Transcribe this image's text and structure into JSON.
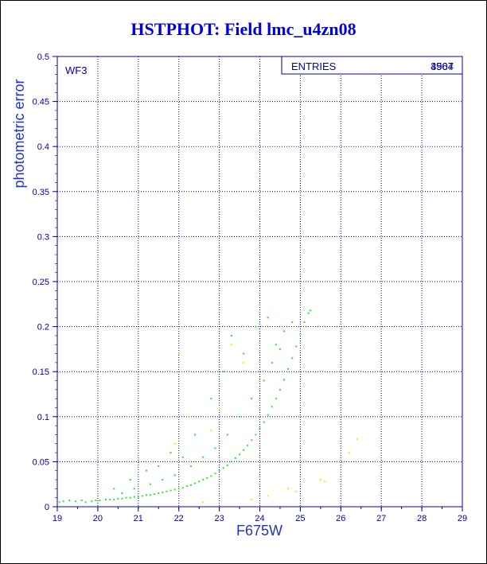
{
  "title": "HSTPHOT: Field lmc_u4zn08",
  "colors": {
    "frame": "#0000aa",
    "grid": "#0000aa",
    "title": "#0000dd",
    "primary_points": "#22ee22",
    "secondary_points": "#eeee00"
  },
  "chart_data": {
    "type": "scatter",
    "title": "HSTPHOT: Field lmc_u4zn08",
    "xlabel": "F675W",
    "ylabel": "photometric error",
    "xlim": [
      19,
      29
    ],
    "ylim": [
      0,
      0.5
    ],
    "x_ticks": [
      "19",
      "20",
      "21",
      "22",
      "23",
      "24",
      "25",
      "26",
      "27",
      "28",
      "29"
    ],
    "y_ticks": [
      "0",
      "0.05",
      "0.1",
      "0.15",
      "0.2",
      "0.25",
      "0.3",
      "0.35",
      "0.4",
      "0.45",
      "0.5"
    ],
    "grid": true,
    "panel_label": "WF3",
    "stats_box": {
      "label": "ENTRIES",
      "values": [
        "4567",
        "3904"
      ]
    },
    "series": [
      {
        "color": "#22ee22",
        "points": [
          [
            19.05,
            0.005
          ],
          [
            19.15,
            0.006
          ],
          [
            19.3,
            0.007
          ],
          [
            19.45,
            0.006
          ],
          [
            19.6,
            0.007
          ],
          [
            19.7,
            0.005
          ],
          [
            19.85,
            0.006
          ],
          [
            19.95,
            0.007
          ],
          [
            20.05,
            0.007
          ],
          [
            20.2,
            0.008
          ],
          [
            20.3,
            0.008
          ],
          [
            20.4,
            0.008
          ],
          [
            20.5,
            0.009
          ],
          [
            20.6,
            0.009
          ],
          [
            20.7,
            0.01
          ],
          [
            20.8,
            0.01
          ],
          [
            20.9,
            0.011
          ],
          [
            21.0,
            0.011
          ],
          [
            21.1,
            0.012
          ],
          [
            21.2,
            0.013
          ],
          [
            21.3,
            0.013
          ],
          [
            21.4,
            0.014
          ],
          [
            21.5,
            0.015
          ],
          [
            21.6,
            0.016
          ],
          [
            21.7,
            0.017
          ],
          [
            21.8,
            0.018
          ],
          [
            21.9,
            0.019
          ],
          [
            22.0,
            0.02
          ],
          [
            22.1,
            0.021
          ],
          [
            22.2,
            0.023
          ],
          [
            22.3,
            0.024
          ],
          [
            22.4,
            0.026
          ],
          [
            22.5,
            0.028
          ],
          [
            22.6,
            0.03
          ],
          [
            22.7,
            0.032
          ],
          [
            22.8,
            0.034
          ],
          [
            22.9,
            0.037
          ],
          [
            23.0,
            0.04
          ],
          [
            23.1,
            0.043
          ],
          [
            23.2,
            0.046
          ],
          [
            23.3,
            0.05
          ],
          [
            23.4,
            0.054
          ],
          [
            23.5,
            0.058
          ],
          [
            23.6,
            0.063
          ],
          [
            23.7,
            0.068
          ],
          [
            23.8,
            0.074
          ],
          [
            23.9,
            0.08
          ],
          [
            24.0,
            0.087
          ],
          [
            24.1,
            0.094
          ],
          [
            24.2,
            0.102
          ],
          [
            24.3,
            0.111
          ],
          [
            24.4,
            0.12
          ],
          [
            24.5,
            0.13
          ],
          [
            24.6,
            0.141
          ],
          [
            24.7,
            0.153
          ],
          [
            24.8,
            0.165
          ],
          [
            24.9,
            0.178
          ],
          [
            25.0,
            0.192
          ],
          [
            25.1,
            0.205
          ],
          [
            25.2,
            0.215
          ],
          [
            25.25,
            0.218
          ],
          [
            20.6,
            0.015
          ],
          [
            20.9,
            0.02
          ],
          [
            21.3,
            0.025
          ],
          [
            21.6,
            0.03
          ],
          [
            21.9,
            0.035
          ],
          [
            22.3,
            0.045
          ],
          [
            22.6,
            0.055
          ],
          [
            22.9,
            0.065
          ],
          [
            23.2,
            0.08
          ],
          [
            23.5,
            0.1
          ],
          [
            23.8,
            0.12
          ],
          [
            24.1,
            0.14
          ],
          [
            24.3,
            0.16
          ],
          [
            24.4,
            0.18
          ],
          [
            24.6,
            0.195
          ],
          [
            23.6,
            0.17
          ],
          [
            23.9,
            0.2
          ],
          [
            24.2,
            0.21
          ],
          [
            22.8,
            0.12
          ],
          [
            22.4,
            0.08
          ],
          [
            21.8,
            0.06
          ],
          [
            21.2,
            0.04
          ],
          [
            20.8,
            0.03
          ],
          [
            23.3,
            0.19
          ],
          [
            23.1,
            0.15
          ],
          [
            24.5,
            0.175
          ],
          [
            24.8,
            0.205
          ],
          [
            22.1,
            0.055
          ],
          [
            21.5,
            0.045
          ],
          [
            20.4,
            0.02
          ]
        ]
      },
      {
        "color": "#eeee00",
        "points": [
          [
            22.0,
            0.17
          ],
          [
            22.6,
            0.005
          ],
          [
            23.3,
            0.18
          ],
          [
            23.6,
            0.16
          ],
          [
            24.7,
            0.02
          ],
          [
            25.5,
            0.03
          ],
          [
            25.6,
            0.028
          ],
          [
            26.2,
            0.06
          ],
          [
            26.4,
            0.075
          ],
          [
            24.2,
            0.012
          ],
          [
            23.8,
            0.008
          ],
          [
            24.9,
            0.017
          ],
          [
            22.4,
            0.05
          ],
          [
            21.9,
            0.07
          ],
          [
            23.0,
            0.11
          ],
          [
            22.8,
            0.085
          ]
        ]
      }
    ]
  }
}
